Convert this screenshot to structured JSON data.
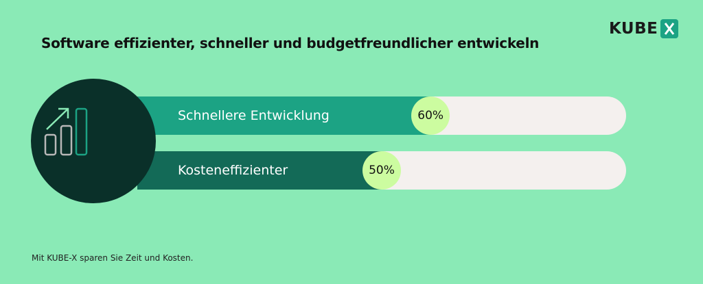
{
  "title": "Software effizienter, schneller und budgetfreundlicher entwickeln",
  "logo": {
    "text": "KUBE",
    "mark": "X",
    "accent": "#1ca384"
  },
  "icon": "chart-growth-icon",
  "bars": [
    {
      "label": "Schnellere Entwicklung",
      "value": 60,
      "value_label": "60%",
      "color": "#1ca384"
    },
    {
      "label": "Kosteneffizienter",
      "value": 50,
      "value_label": "50%",
      "color": "#136a57"
    }
  ],
  "caption": "Mit KUBE-X sparen Sie Zeit und Kosten."
}
